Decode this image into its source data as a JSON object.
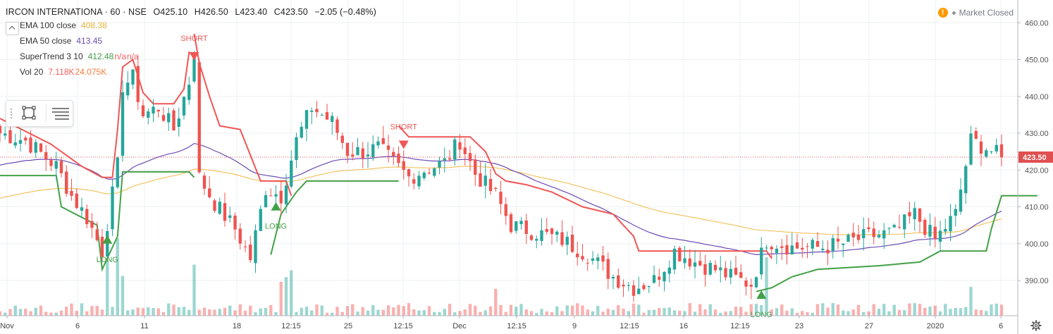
{
  "header": {
    "symbol": "IRCON INTERNATIONA",
    "interval": "60",
    "exchange": "NSE",
    "separator": "·",
    "open": "O425.10",
    "high": "H426.50",
    "low": "L423.40",
    "close": "C423.50",
    "change": "−2.05 (−0.48%)"
  },
  "indicators": [
    {
      "label": "EMA 100 close",
      "values": [
        "408.38"
      ],
      "colors": [
        "#e8b23a"
      ]
    },
    {
      "label": "EMA 50 close",
      "values": [
        "413.45"
      ],
      "colors": [
        "#6b4bb5"
      ]
    },
    {
      "label": "SuperTrend 3 10",
      "values": [
        "412.48",
        "n/a",
        "n/a"
      ],
      "colors": [
        "#43a047",
        "#f06060",
        "#f06060"
      ]
    },
    {
      "label": "Vol 20",
      "values": [
        "7.118K",
        "24.075K"
      ],
      "colors": [
        "#f06060",
        "#f57c3b"
      ]
    }
  ],
  "market_status": {
    "text": "Market Closed",
    "icon": "warning-icon"
  },
  "toolbar": {
    "icons": [
      "drag-handle-icon",
      "rectangle-icon",
      "lines-icon"
    ]
  },
  "colors": {
    "up": "#26a69a",
    "down": "#ef5350",
    "ema100": "#f3c462",
    "ema50": "#6b4bb5",
    "supertrend_up": "#43a047",
    "supertrend_down": "#f05555",
    "price_line": "#e05050"
  },
  "chart_data": {
    "type": "candlestick",
    "ylim": [
      380,
      463
    ],
    "y_ticks": [
      390,
      400,
      410,
      420,
      430,
      440,
      450,
      460
    ],
    "x_ticks": [
      "Nov",
      "6",
      "11",
      "18",
      "12:15",
      "25",
      "12:15",
      "Dec",
      "12:15",
      "9",
      "12:15",
      "16",
      "12:15",
      "23",
      "27",
      "2020",
      "6"
    ],
    "bars": 190,
    "last_price": "423.50",
    "annotations": [
      {
        "text": "SHORT",
        "bar": 38,
        "price": 452
      },
      {
        "text": "SHORT",
        "bar": 79,
        "price": 428
      },
      {
        "text": "LONG",
        "bar": 21,
        "price": 400
      },
      {
        "text": "LONG",
        "bar": 54,
        "price": 409
      },
      {
        "text": "LONG",
        "bar": 149,
        "price": 385
      }
    ],
    "anchors": [
      [
        0,
        430
      ],
      [
        5,
        428
      ],
      [
        11,
        421
      ],
      [
        14,
        413
      ],
      [
        17,
        407
      ],
      [
        20,
        398
      ],
      [
        23,
        421
      ],
      [
        24,
        443
      ],
      [
        26,
        445
      ],
      [
        28,
        435
      ],
      [
        31,
        437
      ],
      [
        34,
        431
      ],
      [
        37,
        444
      ],
      [
        38,
        452
      ],
      [
        39,
        418
      ],
      [
        42,
        411
      ],
      [
        46,
        404
      ],
      [
        49,
        396
      ],
      [
        52,
        415
      ],
      [
        55,
        413
      ],
      [
        58,
        428
      ],
      [
        61,
        437
      ],
      [
        65,
        433
      ],
      [
        68,
        425
      ],
      [
        71,
        425
      ],
      [
        74,
        426
      ],
      [
        77,
        422
      ],
      [
        80,
        418
      ],
      [
        83,
        420
      ],
      [
        87,
        422
      ],
      [
        90,
        428
      ],
      [
        93,
        419
      ],
      [
        97,
        413
      ],
      [
        100,
        405
      ],
      [
        105,
        403
      ],
      [
        110,
        401
      ],
      [
        115,
        397
      ],
      [
        120,
        391
      ],
      [
        124,
        388
      ],
      [
        128,
        390
      ],
      [
        132,
        398
      ],
      [
        136,
        395
      ],
      [
        140,
        393
      ],
      [
        143,
        391
      ],
      [
        147,
        389
      ],
      [
        150,
        401
      ],
      [
        155,
        399
      ],
      [
        161,
        399
      ],
      [
        165,
        400
      ],
      [
        170,
        402
      ],
      [
        175,
        403
      ],
      [
        179,
        408
      ],
      [
        183,
        401
      ],
      [
        187,
        408
      ],
      [
        190,
        428
      ],
      [
        193,
        426
      ],
      [
        196,
        423.5
      ]
    ],
    "supertrend": [
      {
        "color": "down",
        "points": [
          [
            0,
            434
          ],
          [
            10,
            427
          ],
          [
            16,
            421
          ],
          [
            20,
            418
          ],
          [
            22,
            418
          ],
          [
            23,
            431
          ],
          [
            24,
            448
          ],
          [
            26,
            450
          ],
          [
            28,
            441
          ],
          [
            30,
            438
          ],
          [
            32,
            438
          ],
          [
            34,
            438
          ],
          [
            36,
            442
          ],
          [
            37,
            452
          ],
          [
            38,
            451
          ]
        ]
      },
      {
        "color": "up",
        "points": [
          [
            0,
            418.5
          ],
          [
            11,
            418.5
          ],
          [
            12,
            410
          ],
          [
            19,
            405
          ],
          [
            20,
            393
          ],
          [
            23,
            402
          ],
          [
            24,
            419.5
          ],
          [
            37,
            419.5
          ],
          [
            38,
            418
          ]
        ]
      },
      {
        "color": "down",
        "points": [
          [
            38,
            457
          ],
          [
            39,
            449
          ],
          [
            41,
            440
          ],
          [
            43,
            432
          ],
          [
            47,
            431
          ],
          [
            49,
            424
          ],
          [
            51,
            417
          ],
          [
            56,
            417
          ],
          [
            57,
            413
          ]
        ]
      },
      {
        "color": "up",
        "points": [
          [
            53,
            397
          ],
          [
            55,
            408
          ],
          [
            58,
            414
          ],
          [
            60,
            417
          ],
          [
            78,
            417
          ]
        ]
      },
      {
        "color": "down",
        "points": [
          [
            78,
            432
          ],
          [
            80,
            429
          ],
          [
            92,
            429
          ],
          [
            95,
            425
          ],
          [
            97,
            419
          ],
          [
            99,
            417
          ],
          [
            103,
            416
          ],
          [
            108,
            414
          ],
          [
            114,
            410
          ],
          [
            120,
            408
          ],
          [
            124,
            402
          ],
          [
            125,
            398
          ],
          [
            150,
            398
          ],
          [
            151,
            396
          ]
        ]
      },
      {
        "color": "up",
        "points": [
          [
            148,
            387
          ],
          [
            151,
            388
          ],
          [
            155,
            391
          ],
          [
            160,
            393
          ],
          [
            172,
            394
          ],
          [
            180,
            395
          ],
          [
            184,
            398
          ],
          [
            193,
            398
          ],
          [
            194,
            404
          ],
          [
            196,
            413
          ],
          [
            203,
            413
          ]
        ]
      }
    ]
  }
}
